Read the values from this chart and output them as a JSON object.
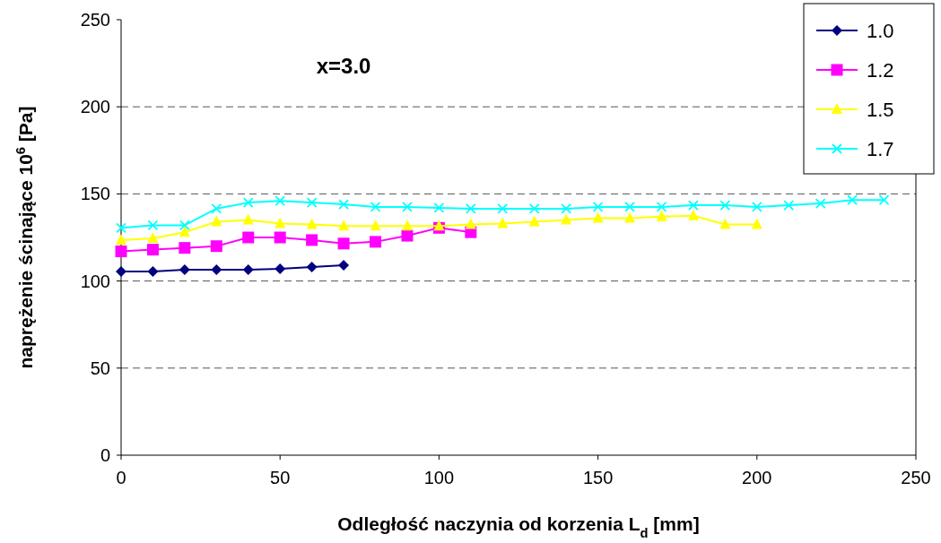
{
  "chart_data": {
    "type": "line",
    "xlabel": "Odległość naczynia od korzenia L$_{d}$ [mm]",
    "ylabel": "naprężenie ścinające 10$^{6}$ [Pa]",
    "annotations": [
      "x=3.0"
    ],
    "xlim": [
      0,
      250
    ],
    "xticks": [
      0,
      50,
      100,
      150,
      200,
      250
    ],
    "ylim": [
      0,
      250
    ],
    "yticks": [
      0,
      50,
      100,
      150,
      200,
      250
    ],
    "grid": "y",
    "legend": "top right",
    "line_style": "solid",
    "series": [
      {
        "name": "1.0",
        "color": "#000080",
        "marker": "diamond",
        "x": [
          0,
          10,
          20,
          30,
          40,
          50,
          60,
          70
        ],
        "values": [
          105.5,
          105.5,
          106.5,
          106.5,
          106.5,
          107,
          108,
          109
        ]
      },
      {
        "name": "1.2",
        "color": "#ff00ff",
        "marker": "square",
        "x": [
          0,
          10,
          20,
          30,
          40,
          50,
          60,
          70,
          80,
          90,
          100,
          110
        ],
        "values": [
          117,
          118,
          119,
          120,
          125,
          125,
          123.5,
          121.5,
          122.5,
          126,
          130.5,
          128
        ]
      },
      {
        "name": "1.5",
        "color": "#ffff00",
        "marker": "triangle",
        "x": [
          0,
          10,
          20,
          30,
          40,
          50,
          60,
          70,
          80,
          90,
          100,
          110,
          120,
          130,
          140,
          150,
          160,
          170,
          180,
          190,
          200
        ],
        "values": [
          123.5,
          124.5,
          128,
          134,
          135,
          133,
          132.5,
          131.5,
          131.5,
          131.5,
          131.5,
          132.5,
          133,
          134,
          135,
          136,
          136,
          137,
          137.5,
          132.5,
          132.5
        ]
      },
      {
        "name": "1.7",
        "color": "#00ffff",
        "marker": "cross",
        "x": [
          0,
          10,
          20,
          30,
          40,
          50,
          60,
          70,
          80,
          90,
          100,
          110,
          120,
          130,
          140,
          150,
          160,
          170,
          180,
          190,
          200,
          210,
          220,
          230,
          240
        ],
        "values": [
          130.5,
          132,
          132,
          141.5,
          145,
          146,
          145,
          144,
          142.5,
          142.5,
          142,
          141.5,
          141.5,
          141.5,
          141.5,
          142.5,
          142.5,
          142.5,
          143.5,
          143.5,
          142.5,
          143.5,
          144.5,
          146.5,
          146.5
        ]
      }
    ]
  }
}
